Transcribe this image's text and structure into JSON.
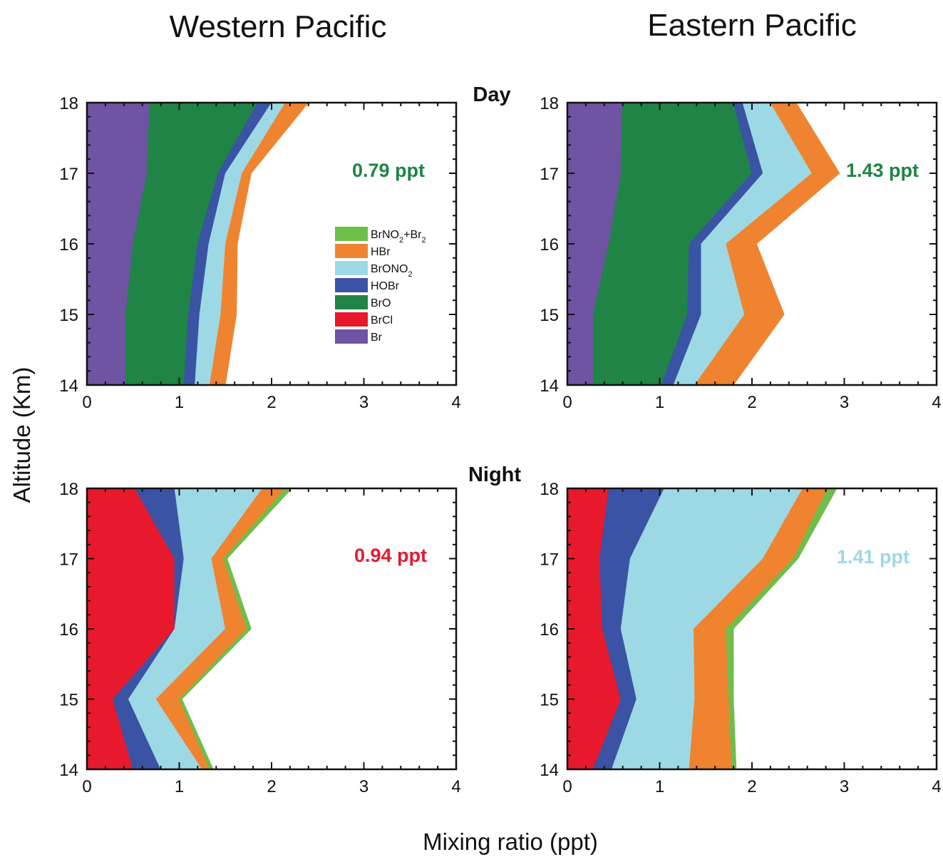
{
  "titles": {
    "west": "Western Pacific",
    "east": "Eastern Pacific",
    "day": "Day",
    "night": "Night"
  },
  "axes": {
    "ylabel": "Altitude (Km)",
    "xlabel": "Mixing ratio (ppt)",
    "xlim": [
      0,
      4
    ],
    "ylim": [
      14,
      18
    ],
    "xticks": [
      "0",
      "1",
      "2",
      "3",
      "4"
    ],
    "yticks": [
      "14",
      "15",
      "16",
      "17",
      "18"
    ]
  },
  "legend": [
    {
      "key": "BrNO2Br2",
      "base": "BrNO",
      "sub1": "2",
      "mid": "+Br",
      "sub2": "2",
      "color": "#6ebe4a"
    },
    {
      "key": "HBr",
      "base": "HBr",
      "color": "#f0832f"
    },
    {
      "key": "BrONO2",
      "base": "BrONO",
      "sub1": "2",
      "color": "#9dd8e5"
    },
    {
      "key": "HOBr",
      "base": "HOBr",
      "color": "#3a53a4"
    },
    {
      "key": "BrO",
      "base": "BrO",
      "color": "#1f8445"
    },
    {
      "key": "BrCl",
      "base": "BrCl",
      "color": "#e8192c"
    },
    {
      "key": "Br",
      "base": "Br",
      "color": "#6e54a3"
    }
  ],
  "chart_data": [
    {
      "type": "area",
      "id": "west-day",
      "region": "Western Pacific",
      "period": "Day",
      "total_label": "0.79 ppt",
      "total_color": "#1f8445",
      "y": [
        14,
        15,
        16,
        17,
        18
      ],
      "stacking": "cumulative, values are right edges of each band (ppt)",
      "series": [
        {
          "name": "Br",
          "color": "#6e54a3",
          "edge": [
            0.42,
            0.42,
            0.5,
            0.65,
            0.68
          ]
        },
        {
          "name": "BrCl",
          "color": "#e8192c",
          "edge": [
            0.42,
            0.42,
            0.5,
            0.65,
            0.68
          ]
        },
        {
          "name": "BrO",
          "color": "#1f8445",
          "edge": [
            1.05,
            1.1,
            1.2,
            1.42,
            1.85
          ]
        },
        {
          "name": "HOBr",
          "color": "#3a53a4",
          "edge": [
            1.17,
            1.22,
            1.32,
            1.5,
            2.0
          ]
        },
        {
          "name": "BrONO2",
          "color": "#9dd8e5",
          "edge": [
            1.33,
            1.45,
            1.5,
            1.68,
            2.15
          ]
        },
        {
          "name": "HBr",
          "color": "#f0832f",
          "edge": [
            1.5,
            1.62,
            1.63,
            1.78,
            2.4
          ]
        },
        {
          "name": "BrNO2+Br2",
          "color": "#6ebe4a",
          "edge": [
            1.5,
            1.62,
            1.63,
            1.78,
            2.4
          ]
        }
      ]
    },
    {
      "type": "area",
      "id": "east-day",
      "region": "Eastern Pacific",
      "period": "Day",
      "total_label": "1.43 ppt",
      "total_color": "#1f8445",
      "y": [
        14,
        15,
        16,
        17,
        18
      ],
      "stacking": "cumulative, values are right edges of each band (ppt)",
      "series": [
        {
          "name": "Br",
          "color": "#6e54a3",
          "edge": [
            0.28,
            0.28,
            0.45,
            0.58,
            0.6
          ]
        },
        {
          "name": "BrCl",
          "color": "#e8192c",
          "edge": [
            0.28,
            0.28,
            0.45,
            0.58,
            0.6
          ]
        },
        {
          "name": "BrO",
          "color": "#1f8445",
          "edge": [
            1.02,
            1.3,
            1.32,
            2.0,
            1.8
          ]
        },
        {
          "name": "HOBr",
          "color": "#3a53a4",
          "edge": [
            1.15,
            1.45,
            1.45,
            2.12,
            1.9
          ]
        },
        {
          "name": "BrONO2",
          "color": "#9dd8e5",
          "edge": [
            1.38,
            1.92,
            1.72,
            2.65,
            2.2
          ]
        },
        {
          "name": "HBr",
          "color": "#f0832f",
          "edge": [
            1.8,
            2.35,
            2.05,
            2.95,
            2.48
          ]
        },
        {
          "name": "BrNO2+Br2",
          "color": "#6ebe4a",
          "edge": [
            1.8,
            2.35,
            2.05,
            2.95,
            2.48
          ]
        }
      ]
    },
    {
      "type": "area",
      "id": "west-night",
      "region": "Western Pacific",
      "period": "Night",
      "total_label": "0.94 ppt",
      "total_color": "#e8192c",
      "y": [
        14,
        15,
        16,
        17,
        18
      ],
      "stacking": "cumulative, values are right edges of each band (ppt)",
      "series": [
        {
          "name": "Br",
          "color": "#6e54a3",
          "edge": [
            0,
            0,
            0,
            0,
            0
          ]
        },
        {
          "name": "BrCl",
          "color": "#e8192c",
          "edge": [
            0.5,
            0.28,
            0.95,
            0.95,
            0.52
          ]
        },
        {
          "name": "BrO",
          "color": "#1f8445",
          "edge": [
            0.5,
            0.28,
            0.95,
            0.95,
            0.52
          ]
        },
        {
          "name": "HOBr",
          "color": "#3a53a4",
          "edge": [
            0.8,
            0.45,
            0.95,
            1.05,
            0.95
          ]
        },
        {
          "name": "BrONO2",
          "color": "#9dd8e5",
          "edge": [
            1.25,
            0.75,
            1.5,
            1.35,
            1.9
          ]
        },
        {
          "name": "HBr",
          "color": "#f0832f",
          "edge": [
            1.33,
            1.0,
            1.73,
            1.48,
            2.15
          ]
        },
        {
          "name": "BrNO2+Br2",
          "color": "#6ebe4a",
          "edge": [
            1.37,
            1.03,
            1.78,
            1.52,
            2.22
          ]
        }
      ]
    },
    {
      "type": "area",
      "id": "east-night",
      "region": "Eastern Pacific",
      "period": "Night",
      "total_label": "1.41 ppt",
      "total_color": "#9dd8e5",
      "y": [
        14,
        15,
        16,
        17,
        18
      ],
      "stacking": "cumulative, values are right edges of each band (ppt)",
      "series": [
        {
          "name": "Br",
          "color": "#6e54a3",
          "edge": [
            0,
            0,
            0,
            0,
            0
          ]
        },
        {
          "name": "BrCl",
          "color": "#e8192c",
          "edge": [
            0.28,
            0.58,
            0.38,
            0.35,
            0.45
          ]
        },
        {
          "name": "BrO",
          "color": "#1f8445",
          "edge": [
            0.28,
            0.58,
            0.38,
            0.35,
            0.45
          ]
        },
        {
          "name": "HOBr",
          "color": "#3a53a4",
          "edge": [
            0.48,
            0.75,
            0.58,
            0.68,
            1.05
          ]
        },
        {
          "name": "BrONO2",
          "color": "#9dd8e5",
          "edge": [
            1.32,
            1.38,
            1.37,
            2.12,
            2.55
          ]
        },
        {
          "name": "HBr",
          "color": "#f0832f",
          "edge": [
            1.78,
            1.75,
            1.72,
            2.45,
            2.82
          ]
        },
        {
          "name": "BrNO2+Br2",
          "color": "#6ebe4a",
          "edge": [
            1.83,
            1.8,
            1.8,
            2.5,
            2.92
          ]
        }
      ]
    }
  ]
}
